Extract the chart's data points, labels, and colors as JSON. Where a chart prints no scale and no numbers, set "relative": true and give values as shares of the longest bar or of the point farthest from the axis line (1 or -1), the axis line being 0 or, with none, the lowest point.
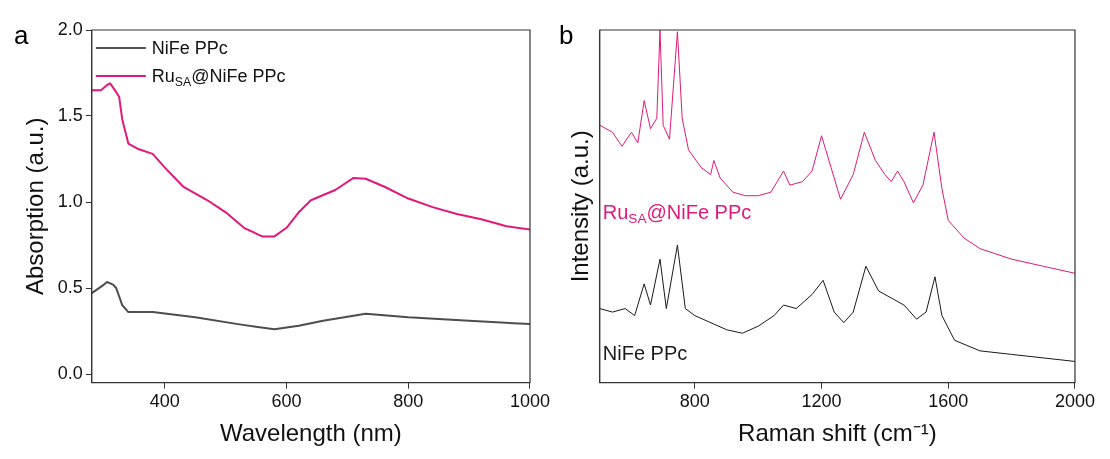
{
  "chart_data": [
    {
      "type": "line",
      "title": "a",
      "xlabel": "Wavelength (nm)",
      "ylabel": "Absorption (a.u.)",
      "xlim": [
        280,
        1000
      ],
      "xticks": [
        400,
        600,
        800,
        1000
      ],
      "ylim": [
        -0.05,
        2.0
      ],
      "yticks": [
        {
          "value": 0,
          "label": "0.0"
        },
        0.5,
        {
          "value": 1,
          "label": "1.0"
        },
        1.5,
        {
          "value": 2,
          "label": "2.0"
        }
      ],
      "grid": false,
      "legend": "top left",
      "marker": "none",
      "line_style": "solid",
      "series": [
        {
          "name": "NiFe PPc",
          "color": "#4d4d4d",
          "x": [
            280,
            300,
            305,
            315,
            320,
            330,
            340,
            380,
            450,
            520,
            580,
            620,
            660,
            730,
            800,
            900,
            1000
          ],
          "values": [
            0.47,
            0.52,
            0.535,
            0.52,
            0.5,
            0.4,
            0.36,
            0.36,
            0.33,
            0.29,
            0.26,
            0.28,
            0.31,
            0.35,
            0.33,
            0.31,
            0.29
          ]
        },
        {
          "name": "Ru$_{SA}$@NiFe PPc",
          "color": "#e0197a",
          "x": [
            280,
            295,
            305,
            310,
            320,
            325,
            330,
            340,
            355,
            380,
            400,
            430,
            470,
            500,
            530,
            560,
            580,
            600,
            620,
            640,
            680,
            710,
            730,
            760,
            800,
            840,
            880,
            920,
            960,
            1000
          ],
          "values": [
            1.65,
            1.65,
            1.68,
            1.69,
            1.64,
            1.61,
            1.48,
            1.34,
            1.31,
            1.28,
            1.2,
            1.09,
            1.01,
            0.94,
            0.85,
            0.8,
            0.8,
            0.85,
            0.94,
            1.01,
            1.07,
            1.14,
            1.135,
            1.09,
            1.02,
            0.97,
            0.93,
            0.9,
            0.86,
            0.84
          ]
        }
      ]
    },
    {
      "type": "line",
      "title": "b",
      "xlabel": "Raman shift (cm⁻¹)",
      "ylabel": "Intensity (a.u.)",
      "xlim": [
        500,
        2000
      ],
      "xticks": [
        800,
        1200,
        1600,
        2000
      ],
      "relative": true,
      "grid": false,
      "legend": false,
      "marker": "none",
      "line_style": "solid",
      "series": [
        {
          "name": "Ru$_{SA}$@NiFe PPc",
          "color": "#e0197a",
          "x": [
            500,
            540,
            570,
            600,
            620,
            640,
            660,
            680,
            690,
            700,
            720,
            745,
            760,
            780,
            820,
            850,
            860,
            880,
            920,
            960,
            1000,
            1040,
            1080,
            1100,
            1140,
            1170,
            1200,
            1230,
            1260,
            1300,
            1335,
            1370,
            1400,
            1420,
            1440,
            1460,
            1490,
            1520,
            1555,
            1580,
            1600,
            1650,
            1700,
            1800,
            1900,
            2000
          ],
          "values": [
            0.73,
            0.71,
            0.67,
            0.71,
            0.68,
            0.8,
            0.72,
            0.75,
            1.0,
            0.73,
            0.69,
            0.995,
            0.75,
            0.66,
            0.61,
            0.59,
            0.63,
            0.58,
            0.54,
            0.53,
            0.53,
            0.54,
            0.6,
            0.56,
            0.57,
            0.6,
            0.7,
            0.61,
            0.52,
            0.59,
            0.71,
            0.63,
            0.59,
            0.57,
            0.6,
            0.57,
            0.51,
            0.56,
            0.71,
            0.55,
            0.46,
            0.41,
            0.38,
            0.35,
            0.33,
            0.31
          ]
        },
        {
          "name": "NiFe PPc",
          "color": "#1a1a1a",
          "x": [
            500,
            540,
            580,
            610,
            640,
            660,
            690,
            710,
            745,
            770,
            800,
            900,
            950,
            1000,
            1050,
            1080,
            1120,
            1170,
            1205,
            1240,
            1270,
            1300,
            1340,
            1380,
            1420,
            1460,
            1500,
            1530,
            1558,
            1580,
            1620,
            1700,
            1800,
            1900,
            2000
          ],
          "values": [
            0.21,
            0.2,
            0.21,
            0.19,
            0.28,
            0.22,
            0.35,
            0.21,
            0.39,
            0.21,
            0.19,
            0.15,
            0.14,
            0.16,
            0.19,
            0.22,
            0.21,
            0.25,
            0.29,
            0.2,
            0.17,
            0.2,
            0.33,
            0.26,
            0.24,
            0.22,
            0.18,
            0.2,
            0.3,
            0.19,
            0.12,
            0.09,
            0.08,
            0.07,
            0.06
          ]
        }
      ]
    }
  ]
}
